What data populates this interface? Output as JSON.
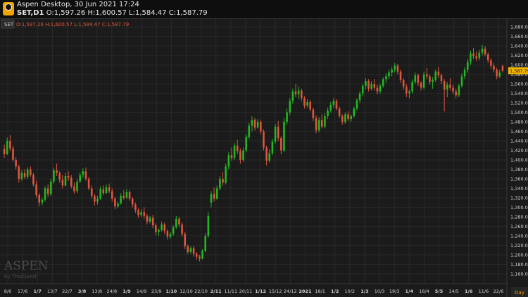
{
  "window": {
    "title": "Aspen Desktop, 30 Jun 2021 17:24",
    "symbol": "SET,D1",
    "ohlc": "O:1,597.26 H:1,600.57 L:1,584.47 C:1,587.79",
    "icon": "aspen-logo-icon"
  },
  "legend": {
    "badge": "SET",
    "ohlc": "O:1,597.26 H:1,600.57 L:1,584.47 C:1,587.79"
  },
  "watermark": {
    "brand": "ASPEN",
    "by": "by ThaiQuest"
  },
  "colors": {
    "up": "#22b822",
    "down": "#e0553c",
    "last_price_bg": "#f0b400",
    "legend_text": "#e05a3c"
  },
  "chart_data": {
    "type": "candlestick",
    "timeframe_label": "Day",
    "ylim": [
      1140,
      1690
    ],
    "yticks": [
      1160,
      1180,
      1200,
      1220,
      1240,
      1260,
      1280,
      1300,
      1320,
      1340,
      1360,
      1380,
      1400,
      1420,
      1440,
      1460,
      1480,
      1500,
      1520,
      1540,
      1560,
      1580,
      1600,
      1620,
      1640,
      1660,
      1680
    ],
    "ytick_labels": [
      "1,160.00",
      "1,180.00",
      "1,200.00",
      "1,220.00",
      "1,240.00",
      "1,260.00",
      "1,280.00",
      "1,300.00",
      "1,320.00",
      "1,340.00",
      "1,360.00",
      "1,380.00",
      "1,400.00",
      "1,420.00",
      "1,440.00",
      "1,460.00",
      "1,480.00",
      "1,500.00",
      "1,520.00",
      "1,540.00",
      "1,560.00",
      "1,580.00",
      "1,600.00",
      "1,620.00",
      "1,640.00",
      "1,660.00",
      "1,680.00"
    ],
    "last_price": 1587.79,
    "last_price_label": "1,587.79",
    "xticks": [
      "8/6",
      "17/6",
      "1/7",
      "13/7",
      "22/7",
      "3/8",
      "13/8",
      "24/8",
      "1/9",
      "14/9",
      "23/9",
      "1/10",
      "12/10",
      "22/10",
      "2/11",
      "11/11",
      "20/11",
      "1/12",
      "15/12",
      "24/12",
      "2021",
      "18/1",
      "1/2",
      "10/2",
      "1/3",
      "10/3",
      "19/3",
      "1/4",
      "16/4",
      "5/5",
      "14/5",
      "1/6",
      "11/6",
      "22/6"
    ],
    "xtick_bold": [
      "1/7",
      "3/8",
      "1/9",
      "1/10",
      "2/11",
      "1/12",
      "2021",
      "1/2",
      "1/3",
      "1/4",
      "5/5",
      "1/6"
    ],
    "ohlc": [
      [
        1423,
        1432,
        1404,
        1412
      ],
      [
        1412,
        1447,
        1410,
        1440
      ],
      [
        1440,
        1452,
        1418,
        1424
      ],
      [
        1424,
        1430,
        1396,
        1400
      ],
      [
        1400,
        1406,
        1380,
        1386
      ],
      [
        1386,
        1390,
        1352,
        1360
      ],
      [
        1360,
        1378,
        1356,
        1372
      ],
      [
        1372,
        1380,
        1360,
        1364
      ],
      [
        1364,
        1384,
        1360,
        1380
      ],
      [
        1380,
        1386,
        1364,
        1368
      ],
      [
        1368,
        1372,
        1344,
        1348
      ],
      [
        1348,
        1356,
        1320,
        1326
      ],
      [
        1326,
        1330,
        1302,
        1310
      ],
      [
        1310,
        1320,
        1304,
        1316
      ],
      [
        1316,
        1344,
        1312,
        1340
      ],
      [
        1340,
        1348,
        1322,
        1328
      ],
      [
        1328,
        1360,
        1324,
        1354
      ],
      [
        1354,
        1384,
        1350,
        1378
      ],
      [
        1378,
        1392,
        1366,
        1372
      ],
      [
        1372,
        1376,
        1352,
        1358
      ],
      [
        1358,
        1368,
        1340,
        1346
      ],
      [
        1346,
        1372,
        1344,
        1366
      ],
      [
        1366,
        1376,
        1356,
        1362
      ],
      [
        1362,
        1368,
        1340,
        1344
      ],
      [
        1344,
        1352,
        1328,
        1334
      ],
      [
        1334,
        1360,
        1330,
        1354
      ],
      [
        1354,
        1374,
        1352,
        1368
      ],
      [
        1368,
        1382,
        1362,
        1376
      ],
      [
        1376,
        1384,
        1356,
        1360
      ],
      [
        1360,
        1364,
        1336,
        1340
      ],
      [
        1340,
        1346,
        1318,
        1324
      ],
      [
        1324,
        1328,
        1304,
        1312
      ],
      [
        1312,
        1324,
        1306,
        1318
      ],
      [
        1318,
        1344,
        1316,
        1338
      ],
      [
        1338,
        1346,
        1326,
        1330
      ],
      [
        1330,
        1348,
        1328,
        1342
      ],
      [
        1342,
        1350,
        1330,
        1334
      ],
      [
        1334,
        1340,
        1312,
        1318
      ],
      [
        1318,
        1322,
        1296,
        1302
      ],
      [
        1302,
        1312,
        1298,
        1308
      ],
      [
        1308,
        1330,
        1306,
        1324
      ],
      [
        1324,
        1336,
        1316,
        1320
      ],
      [
        1320,
        1338,
        1318,
        1332
      ],
      [
        1332,
        1336,
        1314,
        1318
      ],
      [
        1318,
        1322,
        1300,
        1306
      ],
      [
        1306,
        1310,
        1288,
        1294
      ],
      [
        1294,
        1298,
        1278,
        1284
      ],
      [
        1284,
        1296,
        1280,
        1290
      ],
      [
        1290,
        1300,
        1276,
        1282
      ],
      [
        1282,
        1286,
        1264,
        1270
      ],
      [
        1270,
        1282,
        1266,
        1278
      ],
      [
        1278,
        1284,
        1256,
        1262
      ],
      [
        1262,
        1266,
        1242,
        1248
      ],
      [
        1248,
        1256,
        1240,
        1252
      ],
      [
        1252,
        1270,
        1248,
        1264
      ],
      [
        1264,
        1268,
        1244,
        1250
      ],
      [
        1250,
        1254,
        1232,
        1238
      ],
      [
        1238,
        1248,
        1234,
        1244
      ],
      [
        1244,
        1262,
        1240,
        1258
      ],
      [
        1258,
        1282,
        1254,
        1276
      ],
      [
        1276,
        1280,
        1258,
        1264
      ],
      [
        1264,
        1268,
        1238,
        1244
      ],
      [
        1244,
        1248,
        1212,
        1218
      ],
      [
        1218,
        1222,
        1202,
        1206
      ],
      [
        1206,
        1218,
        1202,
        1214
      ],
      [
        1214,
        1218,
        1196,
        1202
      ],
      [
        1202,
        1206,
        1190,
        1196
      ],
      [
        1196,
        1200,
        1186,
        1192
      ],
      [
        1192,
        1212,
        1190,
        1208
      ],
      [
        1208,
        1246,
        1206,
        1240
      ],
      [
        1240,
        1290,
        1236,
        1282
      ],
      [
        1310,
        1334,
        1300,
        1328
      ],
      [
        1328,
        1342,
        1312,
        1318
      ],
      [
        1318,
        1346,
        1316,
        1340
      ],
      [
        1340,
        1366,
        1336,
        1360
      ],
      [
        1360,
        1374,
        1346,
        1352
      ],
      [
        1352,
        1392,
        1348,
        1386
      ],
      [
        1386,
        1416,
        1380,
        1410
      ],
      [
        1410,
        1426,
        1398,
        1404
      ],
      [
        1404,
        1436,
        1400,
        1430
      ],
      [
        1430,
        1442,
        1412,
        1418
      ],
      [
        1418,
        1424,
        1392,
        1400
      ],
      [
        1400,
        1426,
        1396,
        1420
      ],
      [
        1420,
        1454,
        1416,
        1448
      ],
      [
        1448,
        1478,
        1444,
        1472
      ],
      [
        1472,
        1492,
        1460,
        1484
      ],
      [
        1484,
        1488,
        1462,
        1468
      ],
      [
        1468,
        1486,
        1466,
        1480
      ],
      [
        1480,
        1484,
        1454,
        1460
      ],
      [
        1460,
        1464,
        1420,
        1426
      ],
      [
        1426,
        1430,
        1388,
        1398
      ],
      [
        1398,
        1422,
        1394,
        1414
      ],
      [
        1414,
        1444,
        1410,
        1438
      ],
      [
        1438,
        1476,
        1434,
        1470
      ],
      [
        1470,
        1482,
        1440,
        1446
      ],
      [
        1446,
        1450,
        1412,
        1420
      ],
      [
        1420,
        1488,
        1416,
        1480
      ],
      [
        1480,
        1508,
        1474,
        1500
      ],
      [
        1500,
        1530,
        1494,
        1524
      ],
      [
        1524,
        1550,
        1518,
        1544
      ],
      [
        1544,
        1560,
        1532,
        1538
      ],
      [
        1538,
        1554,
        1528,
        1546
      ],
      [
        1546,
        1550,
        1524,
        1530
      ],
      [
        1530,
        1534,
        1508,
        1514
      ],
      [
        1514,
        1528,
        1510,
        1522
      ],
      [
        1522,
        1526,
        1502,
        1506
      ],
      [
        1506,
        1510,
        1482,
        1488
      ],
      [
        1488,
        1494,
        1456,
        1462
      ],
      [
        1462,
        1490,
        1458,
        1484
      ],
      [
        1484,
        1496,
        1466,
        1470
      ],
      [
        1470,
        1498,
        1466,
        1492
      ],
      [
        1492,
        1510,
        1486,
        1504
      ],
      [
        1504,
        1522,
        1500,
        1516
      ],
      [
        1516,
        1530,
        1510,
        1524
      ],
      [
        1524,
        1528,
        1504,
        1508
      ],
      [
        1508,
        1512,
        1488,
        1492
      ],
      [
        1492,
        1496,
        1474,
        1480
      ],
      [
        1480,
        1500,
        1476,
        1496
      ],
      [
        1496,
        1502,
        1482,
        1486
      ],
      [
        1486,
        1496,
        1480,
        1492
      ],
      [
        1492,
        1512,
        1488,
        1508
      ],
      [
        1508,
        1530,
        1504,
        1526
      ],
      [
        1526,
        1544,
        1520,
        1540
      ],
      [
        1540,
        1560,
        1534,
        1556
      ],
      [
        1556,
        1572,
        1548,
        1566
      ],
      [
        1566,
        1570,
        1544,
        1550
      ],
      [
        1550,
        1566,
        1546,
        1560
      ],
      [
        1560,
        1570,
        1546,
        1552
      ],
      [
        1552,
        1558,
        1538,
        1544
      ],
      [
        1544,
        1560,
        1540,
        1556
      ],
      [
        1556,
        1574,
        1552,
        1570
      ],
      [
        1570,
        1582,
        1562,
        1576
      ],
      [
        1576,
        1590,
        1570,
        1584
      ],
      [
        1584,
        1596,
        1576,
        1590
      ],
      [
        1590,
        1604,
        1584,
        1598
      ],
      [
        1598,
        1602,
        1580,
        1586
      ],
      [
        1586,
        1590,
        1562,
        1568
      ],
      [
        1568,
        1572,
        1548,
        1554
      ],
      [
        1554,
        1560,
        1532,
        1540
      ],
      [
        1540,
        1548,
        1530,
        1544
      ],
      [
        1544,
        1570,
        1540,
        1564
      ],
      [
        1564,
        1584,
        1560,
        1578
      ],
      [
        1578,
        1582,
        1556,
        1562
      ],
      [
        1562,
        1566,
        1546,
        1552
      ],
      [
        1552,
        1586,
        1548,
        1580
      ],
      [
        1580,
        1594,
        1570,
        1576
      ],
      [
        1576,
        1580,
        1558,
        1564
      ],
      [
        1564,
        1574,
        1550,
        1568
      ],
      [
        1568,
        1590,
        1564,
        1586
      ],
      [
        1586,
        1596,
        1572,
        1578
      ],
      [
        1578,
        1582,
        1560,
        1566
      ],
      [
        1566,
        1570,
        1502,
        1548
      ],
      [
        1548,
        1564,
        1532,
        1558
      ],
      [
        1558,
        1572,
        1546,
        1552
      ],
      [
        1552,
        1558,
        1538,
        1544
      ],
      [
        1544,
        1550,
        1530,
        1536
      ],
      [
        1536,
        1560,
        1532,
        1556
      ],
      [
        1556,
        1582,
        1552,
        1576
      ],
      [
        1576,
        1596,
        1570,
        1590
      ],
      [
        1590,
        1612,
        1584,
        1606
      ],
      [
        1606,
        1630,
        1600,
        1624
      ],
      [
        1624,
        1636,
        1612,
        1618
      ],
      [
        1618,
        1628,
        1608,
        1614
      ],
      [
        1614,
        1632,
        1610,
        1626
      ],
      [
        1626,
        1642,
        1620,
        1634
      ],
      [
        1634,
        1640,
        1618,
        1622
      ],
      [
        1622,
        1626,
        1604,
        1610
      ],
      [
        1610,
        1614,
        1592,
        1598
      ],
      [
        1598,
        1604,
        1584,
        1590
      ],
      [
        1590,
        1594,
        1570,
        1576
      ],
      [
        1576,
        1590,
        1572,
        1584
      ],
      [
        1597.26,
        1600.57,
        1584.47,
        1587.79
      ]
    ]
  }
}
